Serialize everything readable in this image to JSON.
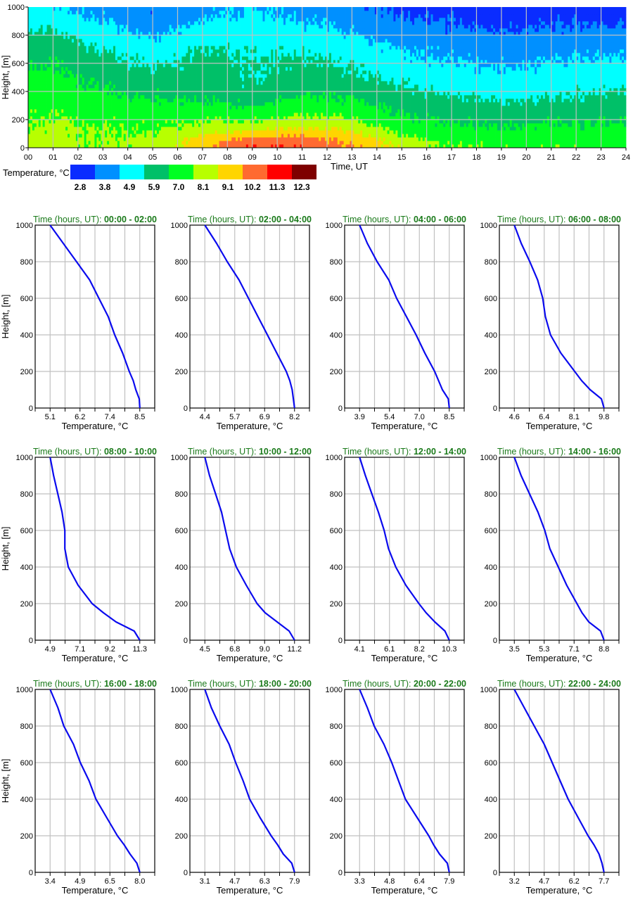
{
  "chart_data": [
    {
      "type": "heatmap",
      "xlabel": "Time, UT",
      "ylabel": "Height, [m]",
      "xlim": [
        0,
        24
      ],
      "ylim": [
        0,
        1000
      ],
      "x_ticks": [
        "00",
        "01",
        "02",
        "03",
        "04",
        "05",
        "06",
        "07",
        "08",
        "09",
        "10",
        "11",
        "12",
        "13",
        "14",
        "15",
        "16",
        "17",
        "18",
        "19",
        "20",
        "21",
        "22",
        "23",
        "24"
      ],
      "y_ticks": [
        "0",
        "200",
        "400",
        "600",
        "800",
        "1000"
      ],
      "grid": true,
      "colorbar": {
        "label": "Temperature, °C",
        "ticks": [
          "2.8",
          "3.8",
          "4.9",
          "5.9",
          "7.0",
          "8.1",
          "9.1",
          "10.2",
          "11.3",
          "12.3"
        ],
        "bounds": [
          2.8,
          3.8,
          4.9,
          5.9,
          7.0,
          8.1,
          9.1,
          10.2,
          11.3,
          12.3
        ],
        "colors": [
          "#0a2cff",
          "#0090ff",
          "#00ffff",
          "#00c068",
          "#00ff22",
          "#b8ff00",
          "#ffd500",
          "#ff6a30",
          "#ff0000",
          "#7e0000"
        ]
      }
    },
    {
      "type": "line",
      "xlabel": "Temperature, °C",
      "ylabel": "Height, [m]",
      "ylim": [
        0,
        1000
      ],
      "y_ticks": [
        "0",
        "200",
        "400",
        "600",
        "800",
        "1000"
      ],
      "title_prefix": "Time (hours, UT): ",
      "line_color": "#0a0aee",
      "title_color": "#1a7a1a",
      "heights": [
        0,
        50,
        100,
        150,
        200,
        300,
        400,
        500,
        600,
        700,
        800,
        900,
        1000
      ],
      "panels": [
        {
          "time_range": "00:00 - 02:00",
          "x_ticks": [
            "5.1",
            "6.2",
            "7.4",
            "8.5"
          ],
          "temps": [
            8.5,
            8.48,
            8.35,
            8.25,
            8.1,
            7.85,
            7.55,
            7.3,
            6.95,
            6.6,
            6.1,
            5.6,
            5.1
          ]
        },
        {
          "time_range": "02:00 - 04:00",
          "x_ticks": [
            "4.4",
            "5.7",
            "6.9",
            "8.2"
          ],
          "temps": [
            8.2,
            8.15,
            8.1,
            8.0,
            7.85,
            7.45,
            7.05,
            6.65,
            6.25,
            5.85,
            5.35,
            4.9,
            4.4
          ]
        },
        {
          "time_range": "04:00 - 06:00",
          "x_ticks": [
            "3.9",
            "5.4",
            "7.0",
            "8.5"
          ],
          "temps": [
            8.5,
            8.45,
            8.15,
            7.95,
            7.75,
            7.25,
            6.8,
            6.3,
            5.8,
            5.4,
            4.8,
            4.3,
            3.9
          ]
        },
        {
          "time_range": "06:00 - 08:00",
          "x_ticks": [
            "4.6",
            "6.4",
            "8.1",
            "9.8"
          ],
          "temps": [
            9.8,
            9.65,
            9.0,
            8.5,
            8.1,
            7.3,
            6.7,
            6.4,
            6.25,
            5.95,
            5.5,
            5.0,
            4.6
          ]
        },
        {
          "time_range": "08:00 - 10:00",
          "x_ticks": [
            "4.9",
            "7.1",
            "9.2",
            "11.3"
          ],
          "temps": [
            11.3,
            10.9,
            9.6,
            8.7,
            7.9,
            6.9,
            6.2,
            5.95,
            5.95,
            5.75,
            5.45,
            5.15,
            4.9
          ]
        },
        {
          "time_range": "10:00 - 12:00",
          "x_ticks": [
            "4.5",
            "6.8",
            "9.0",
            "11.2"
          ],
          "temps": [
            11.2,
            10.8,
            9.9,
            9.0,
            8.4,
            7.6,
            6.85,
            6.35,
            6.05,
            5.75,
            5.3,
            4.85,
            4.5
          ]
        },
        {
          "time_range": "12:00 - 14:00",
          "x_ticks": [
            "4.1",
            "6.1",
            "8.2",
            "10.3"
          ],
          "temps": [
            10.3,
            10.0,
            9.3,
            8.7,
            8.2,
            7.3,
            6.6,
            6.1,
            5.8,
            5.4,
            4.95,
            4.5,
            4.1
          ]
        },
        {
          "time_range": "14:00 - 16:00",
          "x_ticks": [
            "3.5",
            "5.3",
            "7.1",
            "8.8"
          ],
          "temps": [
            8.8,
            8.6,
            7.9,
            7.5,
            7.2,
            6.6,
            6.1,
            5.6,
            5.3,
            4.9,
            4.4,
            3.9,
            3.5
          ]
        },
        {
          "time_range": "16:00 - 18:00",
          "x_ticks": [
            "3.4",
            "4.9",
            "6.5",
            "8.0"
          ],
          "temps": [
            8.0,
            7.85,
            7.5,
            7.2,
            6.85,
            6.3,
            5.75,
            5.4,
            4.95,
            4.6,
            4.1,
            3.8,
            3.4
          ]
        },
        {
          "time_range": "18:00 - 20:00",
          "x_ticks": [
            "3.1",
            "4.7",
            "6.3",
            "7.9"
          ],
          "temps": [
            7.9,
            7.75,
            7.3,
            7.0,
            6.65,
            6.05,
            5.5,
            5.15,
            4.75,
            4.4,
            3.9,
            3.45,
            3.1
          ]
        },
        {
          "time_range": "20:00 - 22:00",
          "x_ticks": [
            "3.3",
            "4.8",
            "6.4",
            "7.9"
          ],
          "temps": [
            7.9,
            7.8,
            7.4,
            7.1,
            6.85,
            6.25,
            5.65,
            5.3,
            4.95,
            4.55,
            4.05,
            3.7,
            3.3
          ]
        },
        {
          "time_range": "22:00 - 24:00",
          "x_ticks": [
            "3.2",
            "4.7",
            "6.2",
            "7.7"
          ],
          "temps": [
            7.7,
            7.6,
            7.45,
            7.2,
            6.9,
            6.4,
            5.9,
            5.5,
            5.1,
            4.7,
            4.2,
            3.7,
            3.2
          ]
        }
      ]
    }
  ]
}
